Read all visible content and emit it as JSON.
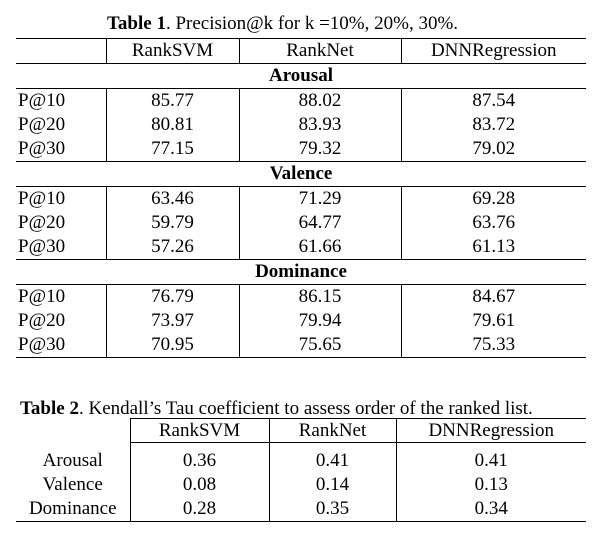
{
  "table1": {
    "caption_label": "Table 1",
    "caption_text": ". Precision@k for k =10%, 20%, 30%.",
    "columns": [
      "RankSVM",
      "RankNet",
      "DNNRegression"
    ],
    "sections": [
      {
        "title": "Arousal",
        "rows": [
          {
            "label": "P@10",
            "values": [
              "85.77",
              "88.02",
              "87.54"
            ]
          },
          {
            "label": "P@20",
            "values": [
              "80.81",
              "83.93",
              "83.72"
            ]
          },
          {
            "label": "P@30",
            "values": [
              "77.15",
              "79.32",
              "79.02"
            ]
          }
        ]
      },
      {
        "title": "Valence",
        "rows": [
          {
            "label": "P@10",
            "values": [
              "63.46",
              "71.29",
              "69.28"
            ]
          },
          {
            "label": "P@20",
            "values": [
              "59.79",
              "64.77",
              "63.76"
            ]
          },
          {
            "label": "P@30",
            "values": [
              "57.26",
              "61.66",
              "61.13"
            ]
          }
        ]
      },
      {
        "title": "Dominance",
        "rows": [
          {
            "label": "P@10",
            "values": [
              "76.79",
              "86.15",
              "84.67"
            ]
          },
          {
            "label": "P@20",
            "values": [
              "73.97",
              "79.94",
              "79.61"
            ]
          },
          {
            "label": "P@30",
            "values": [
              "70.95",
              "75.65",
              "75.33"
            ]
          }
        ]
      }
    ]
  },
  "table2": {
    "caption_label": "Table 2",
    "caption_text": ". Kendall’s Tau coefficient to assess order of the ranked list.",
    "columns": [
      "RankSVM",
      "RankNet",
      "DNNRegression"
    ],
    "rows": [
      {
        "label": "Arousal",
        "values": [
          "0.36",
          "0.41",
          "0.41"
        ]
      },
      {
        "label": "Valence",
        "values": [
          "0.08",
          "0.14",
          "0.13"
        ]
      },
      {
        "label": "Dominance",
        "values": [
          "0.28",
          "0.35",
          "0.34"
        ]
      }
    ]
  }
}
